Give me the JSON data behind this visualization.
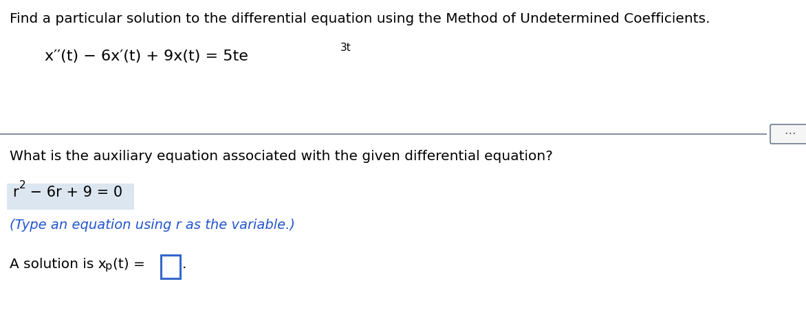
{
  "bg_color": "#ffffff",
  "title_text": "Find a particular solution to the differential equation using the Method of Undetermined Coefficients.",
  "title_fontsize": 14.5,
  "title_color": "#000000",
  "equation_fontsize": 16,
  "divider_color": "#6b7a8d",
  "divider_linewidth": 1.2,
  "question_text": "What is the auxiliary equation associated with the given differential equation?",
  "question_fontsize": 14.5,
  "question_color": "#000000",
  "aux_eq_fontsize": 15,
  "aux_eq_color": "#000000",
  "aux_bg_color": "#dce6f1",
  "hint_text": "(Type an equation using r as the variable.)",
  "hint_fontsize": 14,
  "hint_color": "#2255cc",
  "solution_fontsize": 14.5,
  "solution_color": "#000000",
  "dots_color": "#555555",
  "dots_bg": "#f5f5f5",
  "dots_border": "#6b7a8d"
}
